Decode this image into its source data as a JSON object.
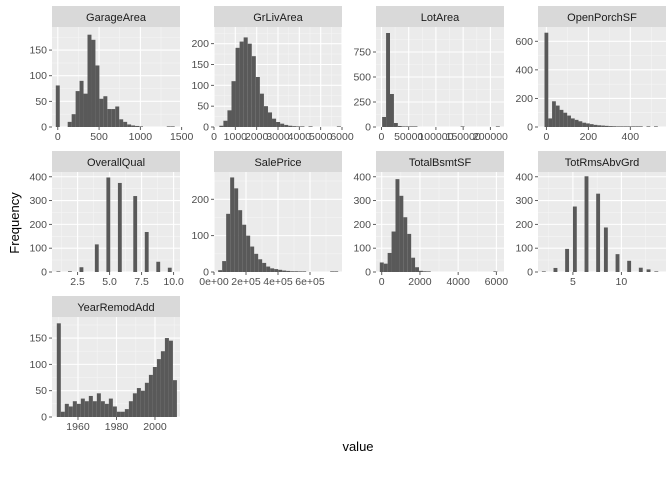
{
  "chart_data": {
    "type": "bar",
    "xlabel": "value",
    "ylabel": "Frequency",
    "colors": {
      "bar": "#595959",
      "panel": "#ebebeb",
      "grid_major": "#ffffff",
      "grid_minor": "#f5f5f5",
      "strip": "#d9d9d9",
      "tick": "#4d4d4d"
    },
    "panels": [
      {
        "title": "GarageArea",
        "xlim": [
          -70,
          1480
        ],
        "ylim": [
          0,
          195
        ],
        "xticks": [
          0,
          500,
          1000,
          1500
        ],
        "xtick_labels": [
          "0",
          "500",
          "1000",
          "1500"
        ],
        "yticks": [
          0,
          50,
          100,
          150
        ],
        "ytick_labels": [
          "0",
          "50",
          "100",
          "150"
        ],
        "bin_start": -24,
        "bin_width": 48,
        "counts": [
          81,
          0,
          0,
          10,
          25,
          70,
          90,
          65,
          180,
          170,
          120,
          55,
          60,
          35,
          35,
          40,
          15,
          10,
          5,
          3,
          2,
          1,
          0,
          0,
          0,
          0,
          0,
          0,
          1,
          1
        ]
      },
      {
        "title": "GrLivArea",
        "xlim": [
          0,
          6000
        ],
        "ylim": [
          0,
          240
        ],
        "xticks": [
          0,
          1000,
          2000,
          3000,
          4000,
          5000,
          6000
        ],
        "xtick_labels": [
          "0",
          "1000",
          "2000",
          "3000",
          "4000",
          "5000",
          "6000"
        ],
        "yticks": [
          0,
          50,
          100,
          150,
          200
        ],
        "ytick_labels": [
          "0",
          "50",
          "100",
          "150",
          "200"
        ],
        "bin_start": 250,
        "bin_width": 190,
        "counts": [
          3,
          15,
          40,
          110,
          190,
          205,
          215,
          200,
          170,
          120,
          80,
          50,
          35,
          20,
          12,
          8,
          5,
          3,
          2,
          1,
          1,
          0,
          1,
          0,
          0,
          0,
          0,
          0,
          0,
          1
        ]
      },
      {
        "title": "LotArea",
        "xlim": [
          -10000,
          225000
        ],
        "ylim": [
          0,
          1000
        ],
        "xticks": [
          0,
          50000,
          100000,
          150000,
          200000
        ],
        "xtick_labels": [
          "0",
          "50000",
          "100000",
          "150000",
          "200000"
        ],
        "yticks": [
          0,
          250,
          500,
          750
        ],
        "ytick_labels": [
          "0",
          "250",
          "500",
          "750"
        ],
        "bin_start": 1300,
        "bin_width": 7200,
        "counts": [
          100,
          940,
          330,
          40,
          10,
          5,
          3,
          2,
          1,
          0,
          0,
          0,
          0,
          0,
          0,
          0,
          0,
          0,
          0,
          0,
          1,
          0,
          0,
          0,
          0,
          0,
          0,
          0,
          0,
          1
        ]
      },
      {
        "title": "OpenPorchSF",
        "xlim": [
          -40,
          570
        ],
        "ylim": [
          0,
          700
        ],
        "xticks": [
          0,
          200,
          400
        ],
        "xtick_labels": [
          "0",
          "200",
          "400"
        ],
        "yticks": [
          0,
          200,
          400,
          600
        ],
        "ytick_labels": [
          "0",
          "200",
          "400",
          "600"
        ],
        "bin_start": -9,
        "bin_width": 18,
        "counts": [
          660,
          60,
          180,
          150,
          120,
          100,
          80,
          60,
          50,
          40,
          30,
          25,
          20,
          15,
          12,
          10,
          8,
          6,
          5,
          4,
          3,
          2,
          2,
          1,
          1,
          1,
          0,
          1,
          0,
          1
        ]
      },
      {
        "title": "OverallQual",
        "xlim": [
          0.5,
          10.5
        ],
        "ylim": [
          0,
          420
        ],
        "xticks": [
          2.5,
          5.0,
          7.5,
          10.0
        ],
        "xtick_labels": [
          "2.5",
          "5.0",
          "7.5",
          "10.0"
        ],
        "yticks": [
          0,
          100,
          200,
          300,
          400
        ],
        "ytick_labels": [
          "0",
          "100",
          "200",
          "300",
          "400"
        ],
        "bin_start": 0.85,
        "bin_width": 0.3,
        "counts": [
          2,
          0,
          0,
          3,
          0,
          0,
          20,
          0,
          0,
          0,
          116,
          0,
          0,
          397,
          0,
          0,
          374,
          0,
          0,
          0,
          319,
          0,
          0,
          168,
          0,
          0,
          43,
          0,
          0,
          18
        ]
      },
      {
        "title": "SalePrice",
        "xlim": [
          0,
          800000
        ],
        "ylim": [
          0,
          275
        ],
        "xticks": [
          0,
          200000,
          400000,
          600000
        ],
        "xtick_labels": [
          "0e+00",
          "2e+05",
          "4e+05",
          "6e+05"
        ],
        "yticks": [
          0,
          100,
          200
        ],
        "ytick_labels": [
          "0",
          "100",
          "200"
        ],
        "bin_start": 26000,
        "bin_width": 25000,
        "counts": [
          5,
          30,
          160,
          260,
          230,
          170,
          130,
          100,
          70,
          50,
          35,
          25,
          15,
          10,
          8,
          6,
          4,
          3,
          2,
          2,
          1,
          1,
          0,
          0,
          0,
          0,
          0,
          0,
          1,
          1
        ]
      },
      {
        "title": "TotalBsmtSF",
        "xlim": [
          -300,
          6400
        ],
        "ylim": [
          0,
          420
        ],
        "xticks": [
          0,
          2000,
          4000,
          6000
        ],
        "xtick_labels": [
          "0",
          "2000",
          "4000",
          "6000"
        ],
        "yticks": [
          0,
          100,
          200,
          300,
          400
        ],
        "ytick_labels": [
          "0",
          "100",
          "200",
          "300",
          "400"
        ],
        "bin_start": -100,
        "bin_width": 205,
        "counts": [
          40,
          35,
          80,
          170,
          390,
          320,
          230,
          160,
          60,
          20,
          5,
          3,
          1,
          0,
          0,
          0,
          0,
          0,
          0,
          0,
          0,
          0,
          0,
          0,
          0,
          0,
          0,
          0,
          0,
          1
        ]
      },
      {
        "title": "TotRmsAbvGrd",
        "xlim": [
          1.4,
          14.6
        ],
        "ylim": [
          0,
          420
        ],
        "xticks": [
          5,
          10
        ],
        "xtick_labels": [
          "5",
          "10"
        ],
        "yticks": [
          0,
          100,
          200,
          300,
          400
        ],
        "ytick_labels": [
          "0",
          "100",
          "200",
          "300",
          "400"
        ],
        "bin_start": 1.8,
        "bin_width": 0.4,
        "counts": [
          1,
          0,
          0,
          17,
          0,
          0,
          97,
          0,
          275,
          0,
          0,
          402,
          0,
          0,
          329,
          0,
          187,
          0,
          0,
          75,
          0,
          0,
          47,
          0,
          0,
          18,
          0,
          11,
          0,
          1
        ]
      },
      {
        "title": "YearRemodAdd",
        "xlim": [
          1946.5,
          2013
        ],
        "ylim": [
          0,
          190
        ],
        "xticks": [
          1960,
          1980,
          2000
        ],
        "xtick_labels": [
          "1960",
          "1980",
          "2000"
        ],
        "yticks": [
          0,
          50,
          100,
          150
        ],
        "ytick_labels": [
          "0",
          "50",
          "100",
          "150"
        ],
        "bin_start": 1949,
        "bin_width": 2.08,
        "counts": [
          178,
          10,
          25,
          20,
          30,
          25,
          35,
          30,
          40,
          30,
          45,
          30,
          25,
          35,
          20,
          10,
          10,
          15,
          30,
          45,
          55,
          50,
          65,
          80,
          95,
          110,
          125,
          150,
          145,
          70
        ]
      }
    ]
  }
}
